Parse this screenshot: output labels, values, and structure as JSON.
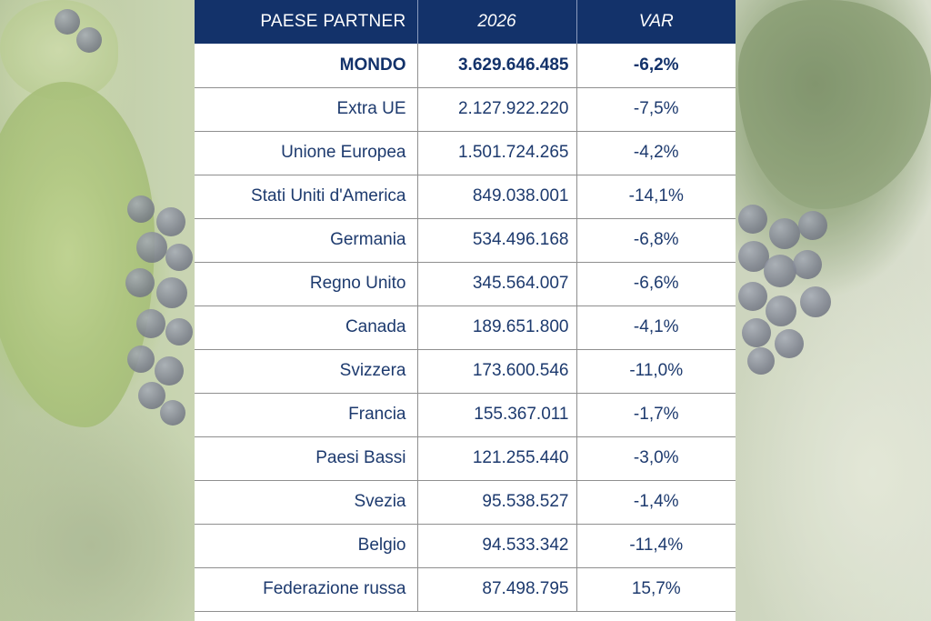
{
  "table": {
    "headers": {
      "country": "PAESE PARTNER",
      "year": "2026",
      "var": "VAR"
    },
    "rows": [
      {
        "country": "MONDO",
        "value": "3.629.646.485",
        "var": "-6,2%",
        "bold": true
      },
      {
        "country": "Extra UE",
        "value": "2.127.922.220",
        "var": "-7,5%"
      },
      {
        "country": "Unione Europea",
        "value": "1.501.724.265",
        "var": "-4,2%"
      },
      {
        "country": "Stati Uniti d'America",
        "value": "849.038.001",
        "var": "-14,1%"
      },
      {
        "country": "Germania",
        "value": "534.496.168",
        "var": "-6,8%"
      },
      {
        "country": "Regno Unito",
        "value": "345.564.007",
        "var": "-6,6%"
      },
      {
        "country": "Canada",
        "value": "189.651.800",
        "var": "-4,1%"
      },
      {
        "country": "Svizzera",
        "value": "173.600.546",
        "var": "-11,0%"
      },
      {
        "country": "Francia",
        "value": "155.367.011",
        "var": "-1,7%"
      },
      {
        "country": "Paesi Bassi",
        "value": "121.255.440",
        "var": "-3,0%"
      },
      {
        "country": "Svezia",
        "value": "95.538.527",
        "var": "-1,4%"
      },
      {
        "country": "Belgio",
        "value": "94.533.342",
        "var": "-11,4%"
      },
      {
        "country": "Federazione russa",
        "value": "87.498.795",
        "var": "15,7%"
      }
    ]
  },
  "colors": {
    "header_bg": "#13326a",
    "header_text": "#ffffff",
    "cell_text": "#1d3a6e"
  }
}
